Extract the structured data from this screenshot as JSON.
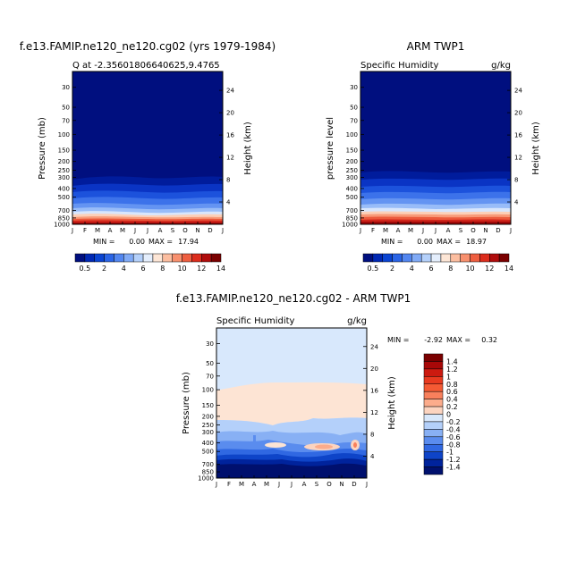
{
  "chart_data": [
    {
      "type": "heatmap",
      "title": "f.e13.FAMIP.ne120_ne120.cg02 (yrs 1979-1984)",
      "subtitle_left": "Q at -2.35601806640625,9.4765",
      "subtitle_right": "",
      "ylabel": "Pressure (mb)",
      "ylabel_right": "Height (km)",
      "x": [
        "J",
        "F",
        "M",
        "A",
        "M",
        "J",
        "J",
        "A",
        "S",
        "O",
        "N",
        "D",
        "J"
      ],
      "y_pressure_ticks": [
        "30",
        "50",
        "70",
        "100",
        "150",
        "200",
        "250",
        "300",
        "400",
        "500",
        "700",
        "850",
        "1000"
      ],
      "y_height_ticks": [
        "24",
        "20",
        "16",
        "12",
        "8",
        "4"
      ],
      "min_label": "MIN =",
      "min_value": "0.00",
      "max_label": "MAX =",
      "max_value": "17.94",
      "min": 0.0,
      "max": 17.94,
      "colorbar_labels": [
        "0.5",
        "2",
        "4",
        "6",
        "8",
        "10",
        "12",
        "14"
      ]
    },
    {
      "type": "heatmap",
      "title": "ARM TWP1",
      "subtitle_left": "Specific Humidity",
      "subtitle_right": "g/kg",
      "ylabel": "pressure level",
      "ylabel_right": "Height (km)",
      "x": [
        "J",
        "F",
        "M",
        "A",
        "M",
        "J",
        "J",
        "A",
        "S",
        "O",
        "N",
        "D",
        "J"
      ],
      "y_pressure_ticks": [
        "30",
        "50",
        "70",
        "100",
        "150",
        "200",
        "250",
        "300",
        "400",
        "500",
        "700",
        "850",
        "1000"
      ],
      "y_height_ticks": [
        "24",
        "20",
        "16",
        "12",
        "8",
        "4"
      ],
      "min_label": "MIN =",
      "min_value": "0.00",
      "max_label": "MAX =",
      "max_value": "18.97",
      "min": 0.0,
      "max": 18.97,
      "colorbar_labels": [
        "0.5",
        "2",
        "4",
        "6",
        "8",
        "10",
        "12",
        "14"
      ]
    },
    {
      "type": "heatmap",
      "title": "f.e13.FAMIP.ne120_ne120.cg02 - ARM TWP1",
      "subtitle_left": "Specific Humidity",
      "subtitle_right": "g/kg",
      "ylabel": "Pressure (mb)",
      "ylabel_right": "Height (km)",
      "x": [
        "J",
        "F",
        "M",
        "A",
        "M",
        "J",
        "J",
        "A",
        "S",
        "O",
        "N",
        "D",
        "J"
      ],
      "y_pressure_ticks": [
        "30",
        "50",
        "70",
        "100",
        "150",
        "200",
        "250",
        "300",
        "400",
        "500",
        "700",
        "850",
        "1000"
      ],
      "y_height_ticks": [
        "24",
        "20",
        "16",
        "12",
        "8",
        "4"
      ],
      "min_label": "MIN =",
      "min_value": "-2.92",
      "max_label": "MAX =",
      "max_value": "0.32",
      "min": -2.92,
      "max": 0.32,
      "colorbar_labels": [
        "1.4",
        "1.2",
        "1",
        "0.8",
        "0.6",
        "0.4",
        "0.2",
        "0",
        "-0.2",
        "-0.4",
        "-0.6",
        "-0.8",
        "-1",
        "-1.2",
        "-1.4"
      ]
    }
  ],
  "colors": {
    "abs_scale": [
      "#000f7f",
      "#0028b4",
      "#0a44d2",
      "#2a64e6",
      "#5286f0",
      "#80aaf6",
      "#b4d0fa",
      "#e4eefc",
      "#fde6d6",
      "#fcbea0",
      "#f8906e",
      "#ee5e40",
      "#dc2c1c",
      "#b00c0c",
      "#7a0000"
    ],
    "diff_scale": [
      "#7a0000",
      "#a80808",
      "#cc1a10",
      "#e83a20",
      "#f45a34",
      "#f8805c",
      "#fcac8c",
      "#fcd4c0",
      "#d8e8fc",
      "#b4d0fa",
      "#88b0f4",
      "#5a8cee",
      "#3068e2",
      "#0e44c8",
      "#00239c",
      "#00106e"
    ]
  }
}
